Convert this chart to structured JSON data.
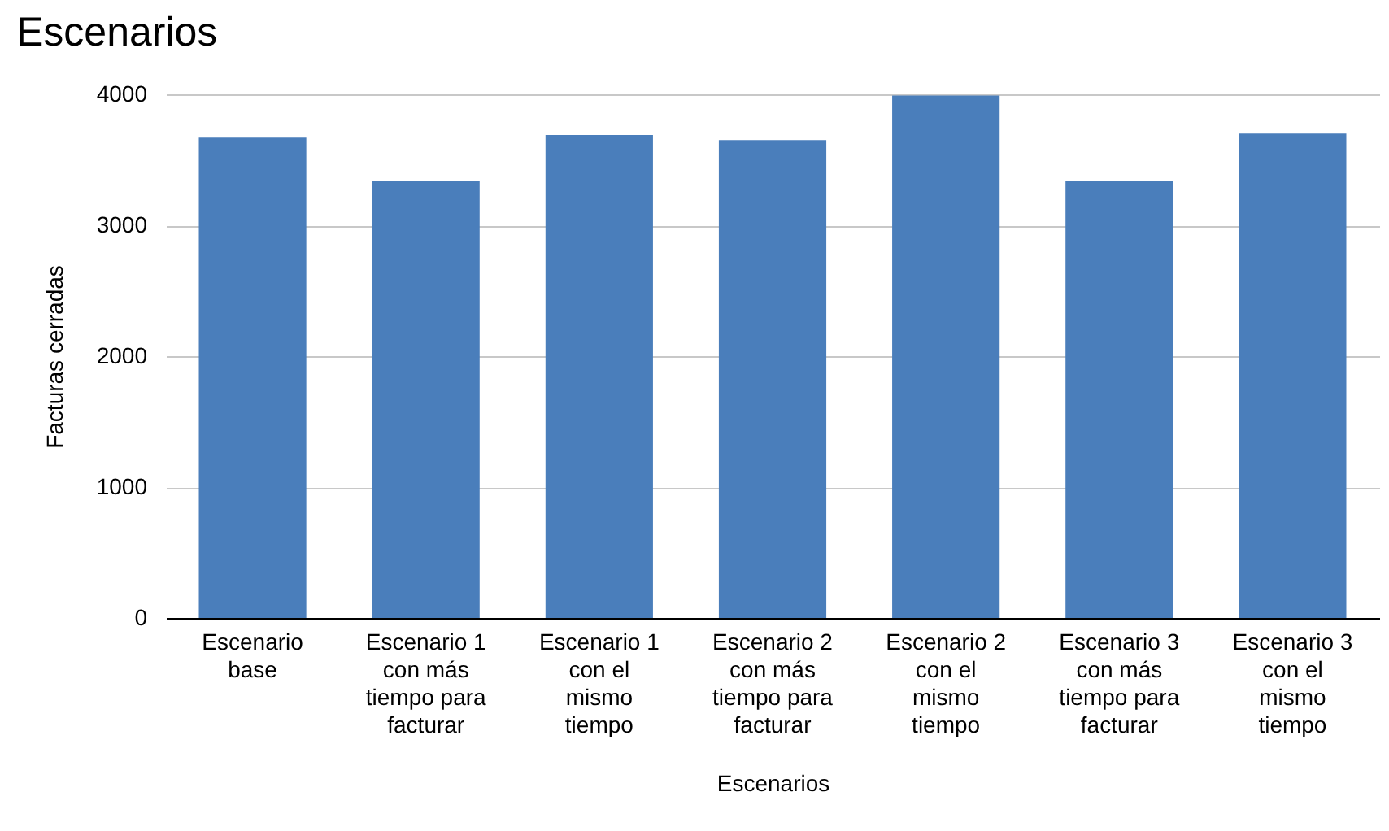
{
  "chart_data": {
    "type": "bar",
    "title": "Escenarios",
    "xlabel": "Escenarios",
    "ylabel": "Facturas cerradas",
    "categories": [
      "Escenario base",
      "Escenario 1 con más tiempo para facturar",
      "Escenario 1 con el mismo tiempo",
      "Escenario 2 con más tiempo para facturar",
      "Escenario 2 con el mismo tiempo",
      "Escenario 3 con más tiempo para facturar",
      "Escenario 3 con el mismo tiempo"
    ],
    "values": [
      3670,
      3340,
      3690,
      3650,
      3990,
      3340,
      3700
    ],
    "color": "#4a7ebb",
    "ylim": [
      0,
      4000
    ],
    "yticks": [
      0,
      1000,
      2000,
      3000,
      4000
    ],
    "grid": "y"
  }
}
